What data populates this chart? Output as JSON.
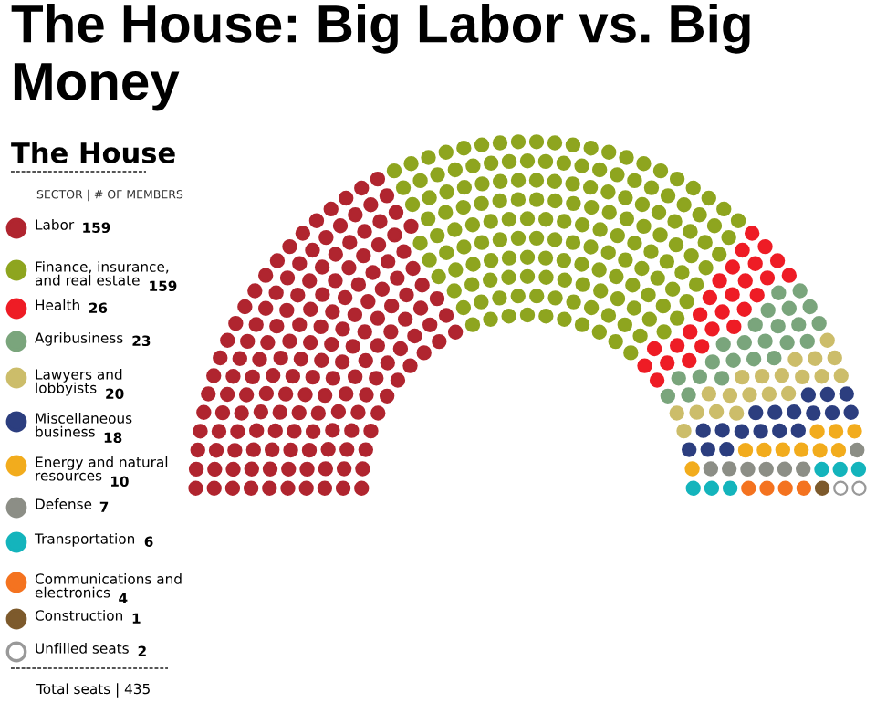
{
  "chart_data": {
    "type": "other",
    "title": "The House: Big Labor vs. Big Money",
    "subtitle": "The House",
    "legend_title": "SECTOR | # OF MEMBERS",
    "categories": [
      "Labor",
      "Finance, insurance,\nand real estate",
      "Health",
      "Agribusiness",
      "Lawyers and\nlobbyists",
      "Miscellaneous\nbusiness",
      "Energy and natural\nresources",
      "Defense",
      "Transportation",
      "Communications and\nelectronics",
      "Construction",
      "Unfilled seats"
    ],
    "values": [
      159,
      159,
      26,
      23,
      20,
      18,
      10,
      7,
      6,
      4,
      1,
      2
    ],
    "colors": [
      "#b0252f",
      "#8ea51f",
      "#ee1c25",
      "#7aa57c",
      "#ccbd6a",
      "#2c3e7f",
      "#f2ac1d",
      "#8c8e86",
      "#14b4bc",
      "#f47320",
      "#7d5a2c",
      "#ffffff"
    ],
    "data_labels": true,
    "annotations": [
      "Total seats | 435"
    ]
  }
}
